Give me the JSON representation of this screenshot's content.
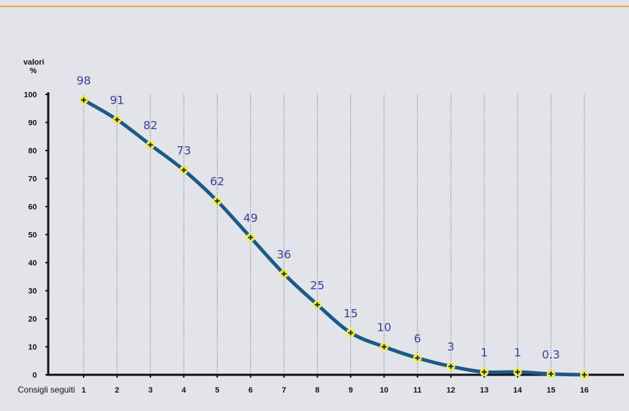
{
  "chart_data": {
    "type": "line",
    "ylabel_line1": "valori",
    "ylabel_line2": "%",
    "xlabel": "Consigli seguiti",
    "x": [
      1,
      2,
      3,
      4,
      5,
      6,
      7,
      8,
      9,
      10,
      11,
      12,
      13,
      14,
      15,
      16
    ],
    "x_labels": [
      "1",
      "2",
      "3",
      "4",
      "5",
      "6",
      "7",
      "8",
      "9",
      "10",
      "11",
      "12",
      "13",
      "14",
      "15",
      "16"
    ],
    "values": [
      98,
      91,
      82,
      73,
      62,
      49,
      36,
      25,
      15,
      10,
      6,
      3,
      1,
      1,
      0.3,
      0
    ],
    "data_labels": [
      "98",
      "91",
      "82",
      "73",
      "62",
      "49",
      "36",
      "25",
      "15",
      "10",
      "6",
      "3",
      "1",
      "1",
      "0.3",
      ""
    ],
    "y_ticks": [
      "0",
      "10",
      "20",
      "30",
      "40",
      "50",
      "60",
      "70",
      "80",
      "90",
      "100"
    ],
    "ylim": [
      0,
      100
    ],
    "grid": "vertical dotted",
    "colors": {
      "line": "#1c5a86",
      "marker_fill": "#f2ee3a",
      "marker_cross": "#1c2a6a",
      "data_label": "#3a3f98",
      "accent_rule": "#f0a14a",
      "background": "#e2e4ea"
    }
  }
}
